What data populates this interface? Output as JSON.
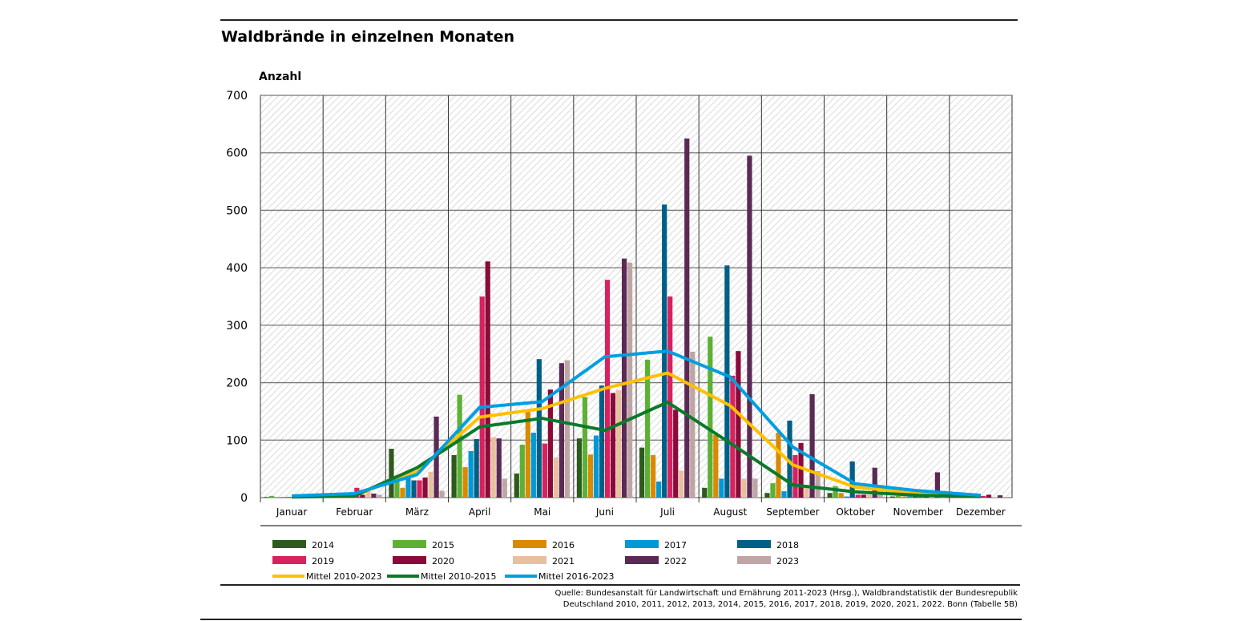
{
  "chart_data": {
    "type": "bar",
    "title": "Waldbrände in einzelnen Monaten",
    "ylabel": "Anzahl",
    "ylim": [
      0,
      700
    ],
    "yticks": [
      0,
      100,
      200,
      300,
      400,
      500,
      600,
      700
    ],
    "grid": true,
    "legend_placement": "bottom",
    "categories": [
      "Januar",
      "Februar",
      "März",
      "April",
      "Mai",
      "Juni",
      "Juli",
      "August",
      "September",
      "Oktober",
      "November",
      "Dezember"
    ],
    "series": [
      {
        "name": "2014",
        "color": "#2f5a1e",
        "values": [
          1,
          2,
          85,
          74,
          42,
          103,
          87,
          17,
          8,
          8,
          2,
          0
        ]
      },
      {
        "name": "2015",
        "color": "#5cb135",
        "values": [
          3,
          8,
          30,
          179,
          92,
          175,
          240,
          280,
          25,
          20,
          3,
          1
        ]
      },
      {
        "name": "2016",
        "color": "#d98a00",
        "values": [
          0,
          2,
          17,
          53,
          153,
          75,
          74,
          109,
          113,
          8,
          2,
          0
        ]
      },
      {
        "name": "2017",
        "color": "#0099d6",
        "values": [
          1,
          3,
          37,
          81,
          113,
          108,
          28,
          33,
          11,
          2,
          2,
          0
        ]
      },
      {
        "name": "2018",
        "color": "#005f86",
        "values": [
          1,
          5,
          30,
          102,
          241,
          195,
          510,
          404,
          134,
          63,
          15,
          1
        ]
      },
      {
        "name": "2019",
        "color": "#d6225e",
        "values": [
          0,
          17,
          30,
          350,
          94,
          379,
          350,
          212,
          74,
          5,
          2,
          3
        ]
      },
      {
        "name": "2020",
        "color": "#8a0a3a",
        "values": [
          0,
          5,
          35,
          411,
          188,
          182,
          153,
          255,
          95,
          5,
          2,
          5
        ]
      },
      {
        "name": "2021",
        "color": "#e8c0a0",
        "values": [
          0,
          12,
          45,
          105,
          70,
          187,
          47,
          33,
          22,
          5,
          2,
          1
        ]
      },
      {
        "name": "2022",
        "color": "#5a2a55",
        "values": [
          1,
          7,
          141,
          103,
          234,
          416,
          625,
          595,
          180,
          52,
          44,
          4
        ]
      },
      {
        "name": "2023",
        "color": "#c0a5a5",
        "values": [
          0,
          5,
          12,
          33,
          239,
          409,
          254,
          33,
          46,
          5,
          2,
          1
        ]
      }
    ],
    "lines": [
      {
        "name": "Mittel 2010-2023",
        "color": "#ffc000",
        "values": [
          2,
          4,
          45,
          140,
          155,
          190,
          217,
          160,
          57,
          18,
          8,
          3
        ]
      },
      {
        "name": "Mittel 2010-2015",
        "color": "#0a7a2a",
        "values": [
          1,
          3,
          52,
          123,
          138,
          117,
          166,
          95,
          22,
          10,
          4,
          2
        ]
      },
      {
        "name": "Mittel 2016-2023",
        "color": "#009fdf",
        "values": [
          3,
          7,
          40,
          157,
          167,
          245,
          255,
          210,
          88,
          24,
          12,
          4
        ]
      }
    ],
    "source": [
      "Quelle: Bundesanstalt für Landwirtschaft und Ernährung 2011-2023 (Hrsg.), Waldbrandstatistik der Bundesrepublik",
      "Deutschland 2010, 2011, 2012, 2013, 2014, 2015, 2016, 2017, 2018, 2019, 2020, 2021, 2022. Bonn (Tabelle 5B)"
    ]
  }
}
